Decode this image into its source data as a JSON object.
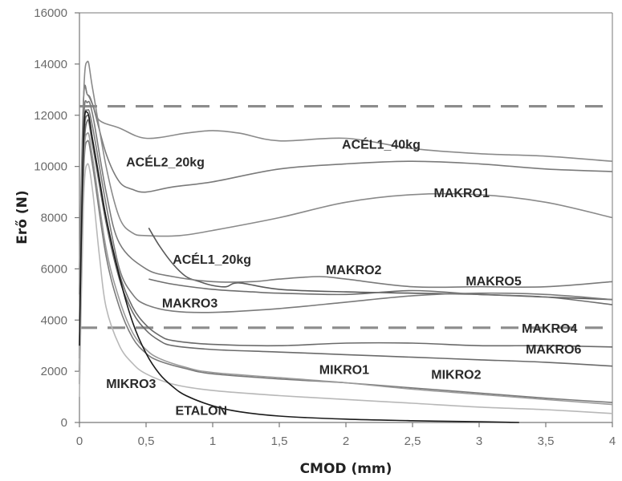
{
  "chart_data": {
    "type": "line",
    "title": "",
    "xlabel": "CMOD (mm)",
    "ylabel": "Erő (N)",
    "xlim": [
      0,
      4
    ],
    "ylim": [
      0,
      16000
    ],
    "grid": false,
    "legend": "none (inline labels)",
    "x_ticks": [
      0,
      0.5,
      1,
      1.5,
      2,
      2.5,
      3,
      3.5,
      4
    ],
    "x_tick_labels": [
      "0",
      "0,5",
      "1",
      "1,5",
      "2",
      "2,5",
      "3",
      "3,5",
      "4"
    ],
    "y_ticks": [
      0,
      2000,
      4000,
      6000,
      8000,
      10000,
      12000,
      14000,
      16000
    ],
    "y_tick_labels": [
      "0",
      "2000",
      "4000",
      "6000",
      "8000",
      "10000",
      "12000",
      "14000",
      "16000"
    ],
    "reference_lines": [
      {
        "name": "upper-limit",
        "y": 12350,
        "style": "dashed"
      },
      {
        "name": "lower-limit",
        "y": 3700,
        "style": "dashed"
      }
    ],
    "series": [
      {
        "name": "ACÉL1_40kg",
        "color": "#8a8a8a",
        "x": [
          0,
          0.03,
          0.06,
          0.1,
          0.15,
          0.3,
          0.5,
          0.8,
          1.0,
          1.2,
          1.5,
          2.0,
          2.5,
          3.0,
          3.5,
          4.0
        ],
        "y": [
          6000,
          12600,
          12800,
          12400,
          11800,
          11500,
          11100,
          11300,
          11400,
          11300,
          11000,
          11100,
          10700,
          10500,
          10400,
          10200
        ],
        "label_at": [
          1.97,
          10700
        ]
      },
      {
        "name": "ACÉL2_20kg",
        "color": "#7a7a7a",
        "x": [
          0,
          0.03,
          0.06,
          0.1,
          0.2,
          0.3,
          0.4,
          0.5,
          0.7,
          1.0,
          1.5,
          2.0,
          2.5,
          3.0,
          3.5,
          4.0
        ],
        "y": [
          5000,
          12500,
          12800,
          12400,
          10500,
          9400,
          9100,
          9000,
          9200,
          9400,
          9900,
          10100,
          10200,
          10100,
          9900,
          9800
        ],
        "label_at": [
          0.35,
          10000
        ]
      },
      {
        "name": "MAKRO1",
        "color": "#8a8a8a",
        "x": [
          0,
          0.03,
          0.06,
          0.1,
          0.2,
          0.3,
          0.4,
          0.5,
          0.75,
          1.0,
          1.5,
          2.0,
          2.5,
          3.0,
          3.5,
          4.0
        ],
        "y": [
          4000,
          12500,
          14100,
          13000,
          10000,
          8000,
          7400,
          7300,
          7300,
          7500,
          8000,
          8600,
          8900,
          8900,
          8600,
          8000
        ],
        "label_at": [
          2.66,
          8800
        ]
      },
      {
        "name": "ACÉL1_20kg",
        "color": "#5a5a5a",
        "x": [
          0.52,
          0.6,
          0.7,
          0.8,
          0.9,
          1.0,
          1.1,
          1.2,
          1.5,
          2.0,
          2.5,
          3.0,
          3.5,
          4.0
        ],
        "y": [
          7600,
          6900,
          6200,
          5700,
          5500,
          5350,
          5300,
          5450,
          5200,
          5100,
          5050,
          5000,
          4900,
          4800
        ],
        "label_at": [
          0.7,
          6200
        ]
      },
      {
        "name": "MAKRO2",
        "color": "#7a7a7a",
        "x": [
          0,
          0.03,
          0.06,
          0.1,
          0.2,
          0.3,
          0.5,
          0.7,
          1.0,
          1.3,
          1.5,
          1.8,
          2.0,
          2.5,
          3.0,
          3.5,
          4.0
        ],
        "y": [
          3000,
          11500,
          12500,
          12000,
          9000,
          7000,
          6000,
          5700,
          5500,
          5500,
          5600,
          5700,
          5600,
          5300,
          5300,
          5300,
          5500
        ],
        "label_at": [
          1.85,
          5800
        ]
      },
      {
        "name": "MAKRO5",
        "color": "#6e6e6e",
        "x": [
          0.52,
          0.7,
          1.0,
          1.3,
          1.5,
          2.0,
          2.5,
          3.0,
          3.5,
          4.0
        ],
        "y": [
          5600,
          5400,
          5200,
          5100,
          5050,
          5000,
          5150,
          5000,
          4900,
          4600
        ],
        "label_at": [
          2.9,
          5350
        ]
      },
      {
        "name": "MAKRO3",
        "color": "#7a7a7a",
        "x": [
          0,
          0.03,
          0.06,
          0.1,
          0.2,
          0.3,
          0.4,
          0.5,
          0.7,
          1.0,
          1.5,
          2.0,
          2.5,
          3.0,
          3.5,
          4.0
        ],
        "y": [
          2500,
          11000,
          12200,
          11500,
          8500,
          6000,
          5000,
          4600,
          4350,
          4300,
          4450,
          4700,
          4950,
          5050,
          5000,
          4800
        ],
        "label_at": [
          0.62,
          4500
        ]
      },
      {
        "name": "MAKRO4",
        "color": "#6a6a6a",
        "x": [
          0,
          0.03,
          0.06,
          0.1,
          0.2,
          0.3,
          0.4,
          0.5,
          0.6,
          0.7,
          1.0,
          1.5,
          2.0,
          2.5,
          3.0,
          3.5,
          4.0
        ],
        "y": [
          2000,
          10500,
          12000,
          11000,
          8000,
          5800,
          4500,
          3800,
          3400,
          3200,
          3050,
          3000,
          3100,
          3100,
          3000,
          3000,
          2950
        ],
        "label_at": [
          3.32,
          3500
        ]
      },
      {
        "name": "MAKRO6",
        "color": "#6a6a6a",
        "x": [
          0,
          0.03,
          0.06,
          0.1,
          0.2,
          0.3,
          0.4,
          0.5,
          0.6,
          0.7,
          1.0,
          1.5,
          2.0,
          2.5,
          3.0,
          3.5,
          4.0
        ],
        "y": [
          2000,
          10000,
          11800,
          10800,
          7800,
          5600,
          4300,
          3600,
          3200,
          3000,
          2850,
          2750,
          2650,
          2550,
          2450,
          2350,
          2200
        ],
        "label_at": [
          3.35,
          2700
        ]
      },
      {
        "name": "MIKRO1",
        "color": "#7a7a7a",
        "x": [
          0,
          0.03,
          0.06,
          0.1,
          0.2,
          0.3,
          0.4,
          0.5,
          0.6,
          0.8,
          1.0,
          1.5,
          2.0,
          2.5,
          3.0,
          3.5,
          4.0
        ],
        "y": [
          1500,
          9500,
          11000,
          10000,
          6500,
          4500,
          3300,
          2700,
          2400,
          2100,
          1900,
          1700,
          1550,
          1350,
          1150,
          950,
          780
        ],
        "label_at": [
          1.8,
          1900
        ]
      },
      {
        "name": "MIKRO2",
        "color": "#9a9a9a",
        "x": [
          0,
          0.03,
          0.06,
          0.1,
          0.2,
          0.3,
          0.4,
          0.5,
          0.6,
          0.8,
          1.0,
          1.5,
          2.0,
          2.5,
          3.0,
          3.5,
          4.0
        ],
        "y": [
          1500,
          9800,
          11300,
          10300,
          6800,
          4800,
          3500,
          2850,
          2500,
          2150,
          1950,
          1750,
          1550,
          1300,
          1100,
          900,
          700
        ],
        "label_at": [
          2.64,
          1700
        ]
      },
      {
        "name": "MIKRO3",
        "color": "#b8b8b8",
        "x": [
          0,
          0.03,
          0.06,
          0.1,
          0.15,
          0.2,
          0.3,
          0.4,
          0.5,
          0.7,
          1.0,
          1.5,
          2.0,
          2.5,
          3.0,
          3.5,
          4.0
        ],
        "y": [
          1000,
          8500,
          10100,
          9000,
          6500,
          4500,
          3000,
          2300,
          1900,
          1500,
          1250,
          1050,
          900,
          750,
          600,
          500,
          350
        ],
        "label_at": [
          0.2,
          1350
        ]
      },
      {
        "name": "ETALON",
        "color": "#1a1a1a",
        "x": [
          0,
          0.03,
          0.06,
          0.1,
          0.15,
          0.2,
          0.3,
          0.4,
          0.5,
          0.6,
          0.7,
          0.8,
          1.0,
          1.2,
          1.5,
          2.0,
          2.5,
          3.0,
          3.3
        ],
        "y": [
          3000,
          11000,
          12100,
          11000,
          9500,
          8000,
          5700,
          3900,
          2700,
          1900,
          1400,
          1050,
          650,
          420,
          250,
          130,
          70,
          30,
          0
        ],
        "label_at": [
          0.72,
          300
        ]
      }
    ]
  }
}
